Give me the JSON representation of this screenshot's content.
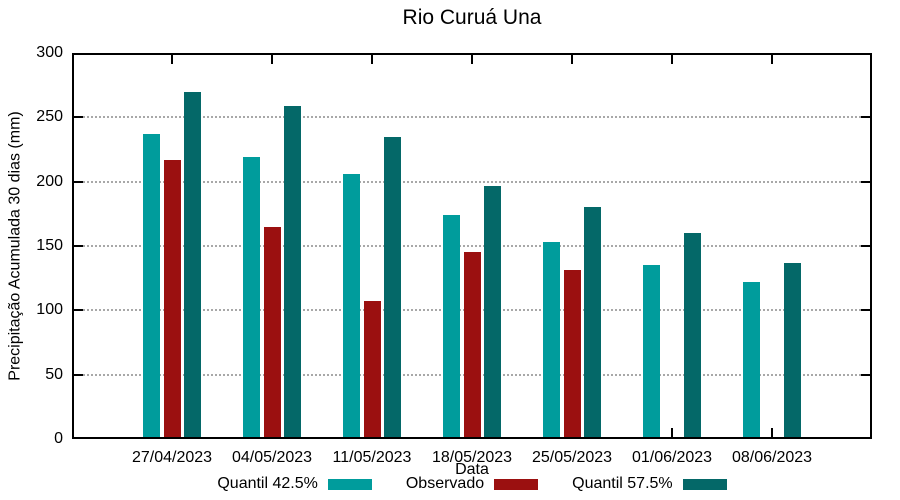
{
  "title": "Rio Curuá Una",
  "chart_data": {
    "type": "bar",
    "title": "Rio Curuá Una",
    "xlabel": "Data",
    "ylabel": "Precipitação Acumulada 30 dias (mm)",
    "ylim": [
      0,
      300
    ],
    "yticks": [
      0,
      50,
      100,
      150,
      200,
      250,
      300
    ],
    "grid": "horizontal-dotted",
    "legend_position": "bottom-center",
    "categories": [
      "27/04/2023",
      "04/05/2023",
      "11/05/2023",
      "18/05/2023",
      "25/05/2023",
      "01/06/2023",
      "08/06/2023"
    ],
    "series": [
      {
        "name": "Quantil 42.5%",
        "color": "#009c9c",
        "values": [
          237,
          219,
          206,
          174,
          153,
          135,
          122
        ]
      },
      {
        "name": "Observado",
        "color": "#9b1010",
        "values": [
          217,
          165,
          107,
          145,
          131,
          null,
          null
        ]
      },
      {
        "name": "Quantil 57.5%",
        "color": "#046868",
        "values": [
          270,
          259,
          235,
          197,
          180,
          160,
          137
        ]
      }
    ],
    "colors": {
      "axis": "#000000",
      "gridline": "#a8a8a8",
      "background": "#ffffff",
      "text": "#000000"
    }
  }
}
